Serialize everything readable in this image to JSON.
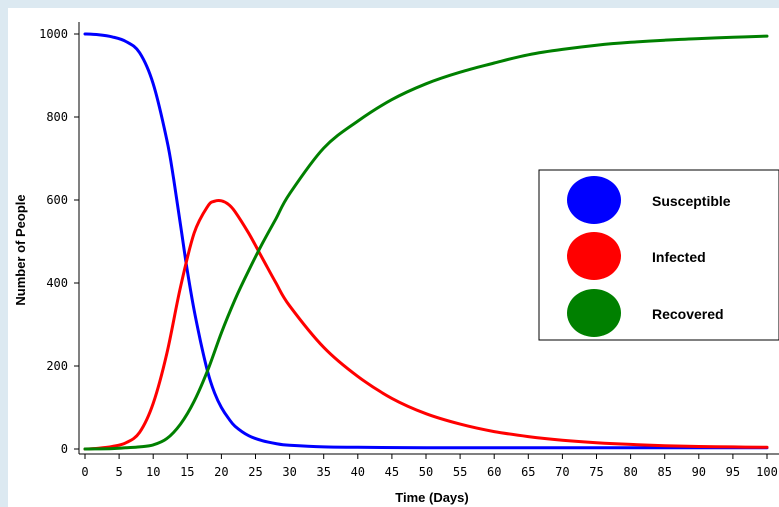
{
  "chart_data": {
    "type": "line",
    "title": "",
    "xlabel": "Time (Days)",
    "ylabel": "Number of People",
    "xlim": [
      0,
      100
    ],
    "ylim": [
      0,
      1000
    ],
    "xticks": [
      0,
      5,
      10,
      15,
      20,
      25,
      30,
      35,
      40,
      45,
      50,
      55,
      60,
      65,
      70,
      75,
      80,
      85,
      90,
      95,
      100
    ],
    "yticks": [
      0,
      200,
      400,
      600,
      800,
      1000
    ],
    "grid": false,
    "legend_position": "right",
    "series": [
      {
        "name": "Susceptible",
        "color": "#0000ff",
        "x": [
          0,
          2,
          4,
          6,
          8,
          10,
          12,
          13,
          14,
          15,
          16,
          17,
          18,
          19,
          20,
          21,
          22,
          24,
          26,
          28,
          30,
          35,
          40,
          50,
          60,
          70,
          80,
          90,
          100
        ],
        "y": [
          1000,
          998,
          993,
          982,
          955,
          880,
          745,
          650,
          540,
          430,
          335,
          255,
          185,
          135,
          100,
          75,
          55,
          32,
          20,
          13,
          9,
          5,
          4,
          3,
          3,
          3,
          3,
          3,
          3
        ]
      },
      {
        "name": "Infected",
        "color": "#ff0000",
        "x": [
          0,
          2,
          4,
          6,
          8,
          10,
          12,
          14,
          16,
          18,
          19,
          20,
          21,
          22,
          24,
          26,
          28,
          30,
          35,
          40,
          45,
          50,
          55,
          60,
          65,
          70,
          75,
          80,
          85,
          90,
          95,
          100
        ],
        "y": [
          0,
          2,
          6,
          15,
          40,
          110,
          230,
          390,
          520,
          585,
          597,
          598,
          590,
          572,
          520,
          460,
          400,
          345,
          245,
          175,
          122,
          85,
          60,
          42,
          30,
          21,
          15,
          11,
          8,
          6,
          5,
          4
        ]
      },
      {
        "name": "Recovered",
        "color": "#008000",
        "x": [
          0,
          4,
          6,
          8,
          10,
          12,
          14,
          16,
          18,
          20,
          22,
          24,
          26,
          28,
          30,
          35,
          40,
          45,
          50,
          55,
          60,
          65,
          70,
          75,
          80,
          85,
          90,
          95,
          100
        ],
        "y": [
          0,
          1,
          3,
          5,
          10,
          25,
          60,
          115,
          190,
          280,
          360,
          430,
          495,
          555,
          615,
          725,
          790,
          842,
          880,
          908,
          930,
          950,
          963,
          973,
          980,
          985,
          989,
          992,
          995
        ]
      }
    ]
  },
  "legend": {
    "items": [
      "Susceptible",
      "Infected",
      "Recovered"
    ]
  }
}
